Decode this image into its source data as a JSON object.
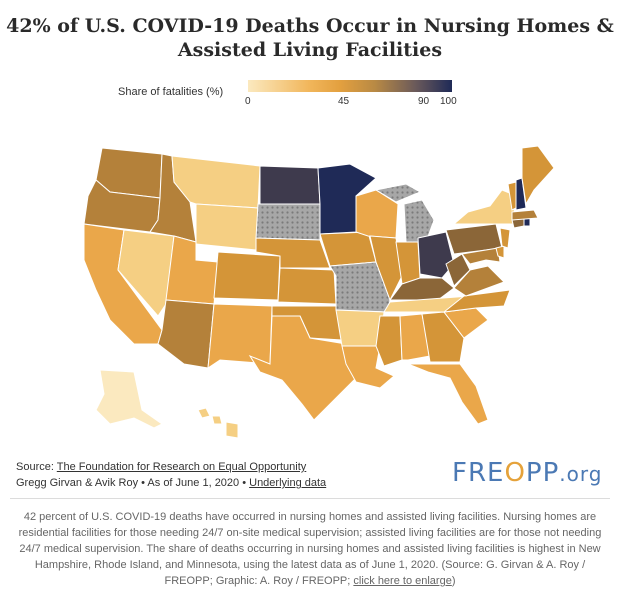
{
  "title_line1": "42% of U.S. COVID-19 Deaths Occur in Nursing Homes &",
  "title_line2": "Assisted Living Facilities",
  "legend": {
    "title": "Share of fatalities (%)",
    "ticks": [
      "0",
      "45",
      "90",
      "100"
    ],
    "tick_values": [
      0,
      45,
      90,
      100
    ]
  },
  "colors": {
    "very_light": "#fbe9bf",
    "light": "#f5cf83",
    "medium": "#eaa74a",
    "medium_dark": "#d49538",
    "brown": "#b4813a",
    "dark_brown": "#8b6638",
    "very_dark": "#3e3a4d",
    "darkest": "#1f2a57",
    "no_data": "#9a9a9a"
  },
  "footer": {
    "source_label": "Source: ",
    "source_link": "The Foundation for Research on Equal Opportunity",
    "authors": "Gregg Girvan & Avik Roy • As of June 1, 2020 • ",
    "data_link": "Underlying data"
  },
  "logo": {
    "part1": "FRE",
    "part2": "O",
    "part3": "PP",
    "part4": ".org"
  },
  "caption": {
    "text": "42 percent of U.S. COVID-19 deaths have occurred in nursing homes and assisted living facilities. Nursing homes are residential facilities for those needing 24/7 on-site medical supervision; assisted living facilities are for those not needing 24/7 medical supervision. The share of deaths occurring in nursing homes and assisted living facilities is highest in New Hampshire, Rhode Island, and Minnesota, using the latest data as of June 1, 2020. (Source: G. Girvan & A. Roy / FREOPP; Graphic: A. Roy / FREOPP; ",
    "link": "click here to enlarge",
    "end": ")"
  }
}
